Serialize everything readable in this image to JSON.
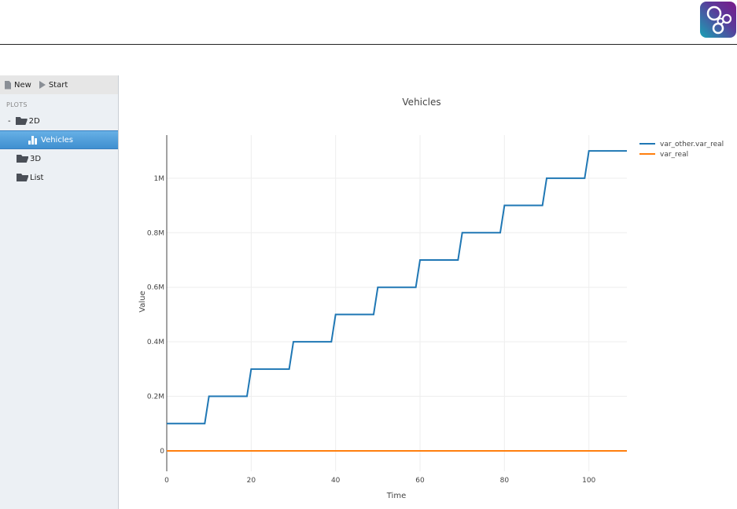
{
  "header": {
    "logo": "app-logo-circles"
  },
  "sidebar": {
    "toolbar": {
      "new_label": "New",
      "start_label": "Start"
    },
    "section_label": "PLOTS",
    "tree": {
      "toggle": "-",
      "2d": "2D",
      "vehicles": "Vehicles",
      "3d": "3D",
      "list": "List"
    }
  },
  "chart_data": {
    "type": "line",
    "title": "Vehicles",
    "xlabel": "Time",
    "ylabel": "Value",
    "xlim": [
      0,
      109
    ],
    "ylim": [
      -75000,
      1158000
    ],
    "xticks": [
      0,
      20,
      40,
      60,
      80,
      100
    ],
    "xtick_labels": [
      "0",
      "20",
      "40",
      "60",
      "80",
      "100"
    ],
    "yticks": [
      0,
      200000,
      400000,
      600000,
      800000,
      1000000
    ],
    "ytick_labels": [
      "0",
      "0.2M",
      "0.4M",
      "0.6M",
      "0.8M",
      "1M"
    ],
    "grid": true,
    "legend_position": "top-right",
    "series": [
      {
        "name": "var_other.var_real",
        "color": "#1f77b4",
        "x": [
          0,
          9,
          10,
          19,
          20,
          29,
          30,
          39,
          40,
          49,
          50,
          59,
          60,
          69,
          70,
          79,
          80,
          89,
          90,
          99,
          100,
          109
        ],
        "y": [
          100000,
          100000,
          200000,
          200000,
          300000,
          300000,
          400000,
          400000,
          500000,
          500000,
          600000,
          600000,
          700000,
          700000,
          800000,
          800000,
          900000,
          900000,
          1000000,
          1000000,
          1100000,
          1100000
        ]
      },
      {
        "name": "var_real",
        "color": "#ff7f0e",
        "x": [
          0,
          109
        ],
        "y": [
          0,
          0
        ]
      }
    ]
  }
}
